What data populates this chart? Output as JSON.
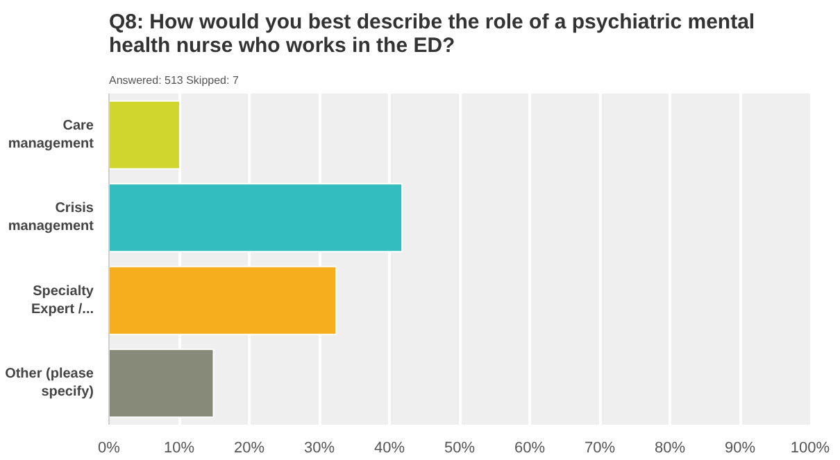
{
  "chart_data": {
    "type": "bar",
    "orientation": "horizontal",
    "title": "Q8: How would you best describe the role of a psychiatric mental health nurse who works in the ED?",
    "subtitle": "Answered: 513    Skipped: 7",
    "categories": [
      "Care management",
      "Crisis management",
      "Specialty Expert /...",
      "Other (please specify)"
    ],
    "values": [
      10.1,
      41.8,
      32.4,
      14.9
    ],
    "colors": [
      "#d0d62e",
      "#33bdbf",
      "#f7ae1e",
      "#878a78"
    ],
    "xlim": [
      0,
      100
    ],
    "xticks": [
      {
        "value": 0,
        "label": "0%"
      },
      {
        "value": 10,
        "label": "10%"
      },
      {
        "value": 20,
        "label": "20%"
      },
      {
        "value": 30,
        "label": "30%"
      },
      {
        "value": 40,
        "label": "40%"
      },
      {
        "value": 50,
        "label": "50%"
      },
      {
        "value": 60,
        "label": "60%"
      },
      {
        "value": 70,
        "label": "70%"
      },
      {
        "value": 80,
        "label": "80%"
      },
      {
        "value": 90,
        "label": "90%"
      },
      {
        "value": 100,
        "label": "100%"
      }
    ],
    "grid": "x"
  }
}
